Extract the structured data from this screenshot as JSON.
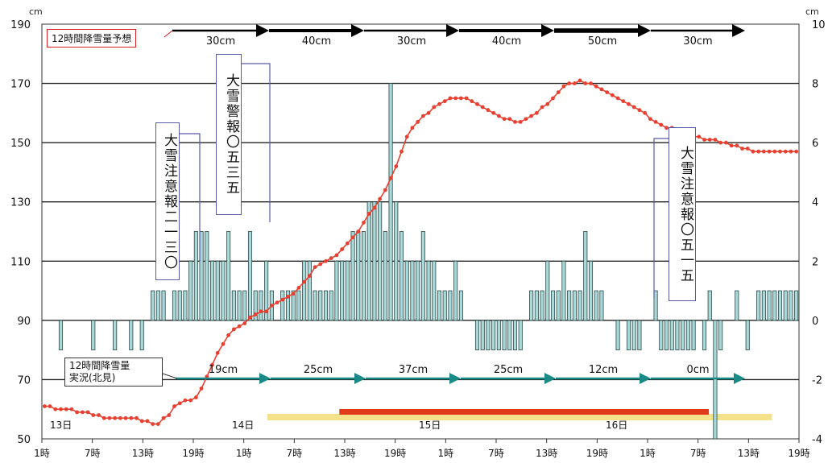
{
  "units": {
    "left": "cm",
    "right": "cm"
  },
  "forecast_label": "12時間降雪量予想",
  "observed_label_line1": "12時間降雪量",
  "observed_label_line2": "実況(北見)",
  "callouts": [
    {
      "text": "大雪注意報二一三〇"
    },
    {
      "text": "大雪警報〇五三五"
    },
    {
      "text": "大雪注意報〇五一五"
    }
  ],
  "days": [
    "13日",
    "14日",
    "15日",
    "16日"
  ],
  "chart_data": {
    "type": "bar",
    "left_axis": {
      "unit": "cm",
      "range": [
        50,
        190
      ],
      "ticks": [
        50,
        70,
        90,
        110,
        130,
        150,
        170,
        190
      ]
    },
    "right_axis": {
      "unit": "cm",
      "range": [
        -4,
        10
      ],
      "ticks": [
        -4,
        -2,
        0,
        2,
        4,
        6,
        8,
        10
      ]
    },
    "x_tick_labels": [
      "1時",
      "7時",
      "13時",
      "19時",
      "1時",
      "7時",
      "13時",
      "19時",
      "1時",
      "7時",
      "13時",
      "19時",
      "1時",
      "7時",
      "13時",
      "19時"
    ],
    "forecast_arrows": [
      {
        "label": "30cm"
      },
      {
        "label": "40cm"
      },
      {
        "label": "30cm"
      },
      {
        "label": "40cm"
      },
      {
        "label": "50cm"
      },
      {
        "label": "30cm"
      }
    ],
    "observed_arrows": [
      {
        "label": "19cm"
      },
      {
        "label": "25cm"
      },
      {
        "label": "37cm"
      },
      {
        "label": "25cm"
      },
      {
        "label": "12cm"
      },
      {
        "label": "0cm"
      }
    ],
    "series": [
      {
        "kind": "bar",
        "axis": "right",
        "values": [
          0,
          0,
          0,
          -1,
          0,
          0,
          0,
          0,
          0,
          -1,
          0,
          0,
          0,
          -1,
          0,
          0,
          -1,
          0,
          -1,
          0,
          1,
          1,
          1,
          0,
          1,
          1,
          1,
          2,
          3,
          3,
          3,
          2,
          2,
          2,
          3,
          1,
          1,
          1,
          3,
          1,
          1,
          2,
          1,
          0,
          1,
          1,
          1,
          1,
          2,
          2,
          1,
          1,
          1,
          1,
          2,
          2,
          2,
          3,
          3,
          3,
          4,
          4,
          4,
          3,
          8,
          4,
          3,
          2,
          2,
          2,
          3,
          2,
          2,
          1,
          1,
          1,
          2,
          1,
          0,
          0,
          -1,
          -1,
          -1,
          -1,
          -1,
          -1,
          -1,
          -1,
          -1,
          0,
          1,
          1,
          1,
          2,
          1,
          1,
          2,
          1,
          1,
          1,
          3,
          2,
          1,
          1,
          0,
          0,
          -1,
          0,
          -1,
          -1,
          -1,
          0,
          0,
          1,
          -1,
          -1,
          -1,
          -1,
          -1,
          -1,
          -1,
          0,
          -1,
          1,
          -4,
          -1,
          0,
          0,
          1,
          0,
          -1,
          0,
          1,
          1,
          1,
          1,
          1,
          1,
          1,
          1
        ]
      },
      {
        "kind": "line",
        "axis": "left",
        "name": "snow_depth",
        "values": [
          61,
          61,
          60,
          60,
          60,
          60,
          59,
          59,
          59,
          58,
          58,
          57,
          57,
          57,
          57,
          57,
          57,
          57,
          56,
          56,
          55,
          55,
          57,
          58,
          61,
          62,
          63,
          63,
          64,
          67,
          71,
          75,
          79,
          82,
          85,
          87,
          88,
          89,
          91,
          92,
          93,
          93,
          95,
          96,
          97,
          98,
          99,
          101,
          103,
          105,
          108,
          109,
          110,
          111,
          112,
          114,
          116,
          118,
          120,
          123,
          126,
          128,
          131,
          134,
          138,
          142,
          147,
          152,
          155,
          157,
          159,
          160,
          162,
          163,
          164,
          165,
          165,
          165,
          165,
          164,
          163,
          162,
          161,
          160,
          159,
          158,
          158,
          157,
          157,
          158,
          159,
          160,
          162,
          163,
          165,
          167,
          169,
          170,
          170,
          171,
          170,
          170,
          169,
          168,
          167,
          166,
          165,
          164,
          163,
          162,
          161,
          160,
          158,
          157,
          156,
          155,
          155,
          154,
          154,
          153,
          152,
          152,
          151,
          151,
          151,
          150,
          150,
          149,
          149,
          148,
          148,
          147,
          147,
          147,
          147,
          147,
          147,
          147,
          147,
          147
        ]
      }
    ],
    "bands": [
      {
        "color": "#f4e28a",
        "from_hour": 50,
        "to_hour": 162
      },
      {
        "color": "#e23b1c",
        "from_hour": 66,
        "to_hour": 148
      }
    ]
  }
}
